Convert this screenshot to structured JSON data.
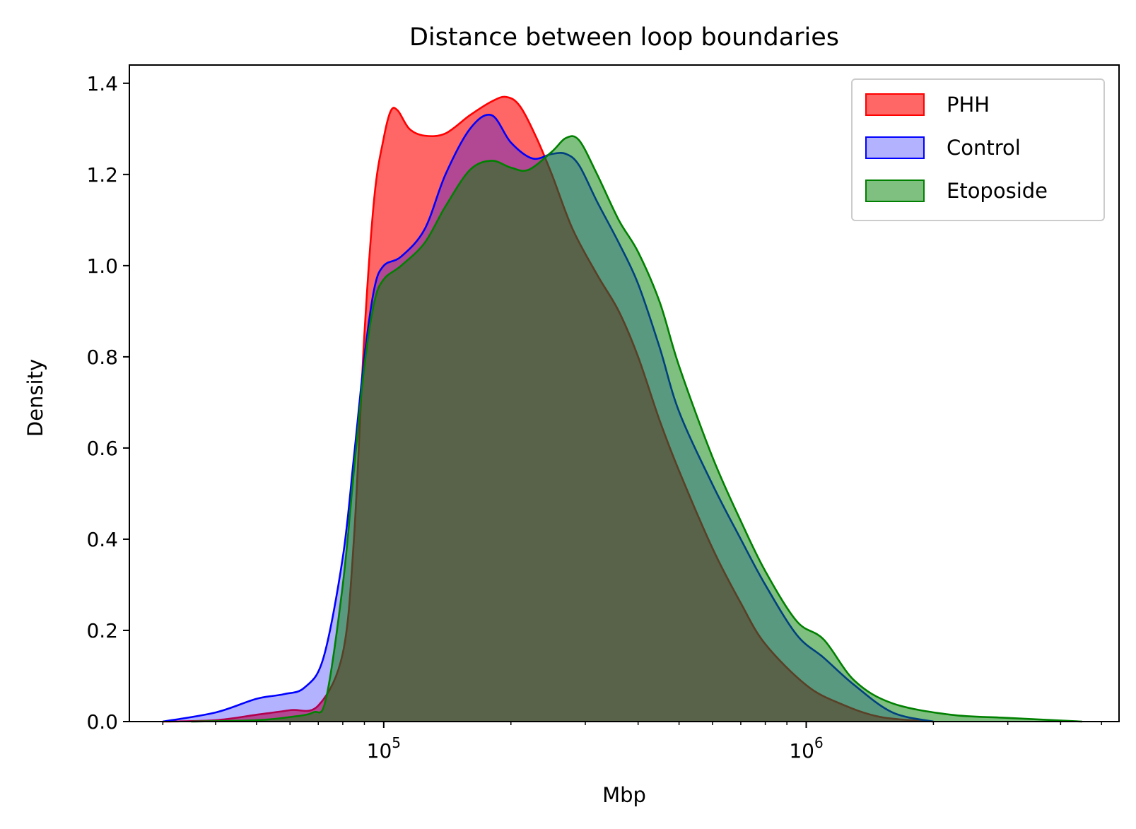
{
  "chart_data": {
    "type": "area",
    "title": "Distance between loop boundaries",
    "xlabel": "Mbp",
    "ylabel": "Density",
    "x_scale": "log10",
    "xlim": [
      25000,
      5500000
    ],
    "ylim": [
      0,
      1.44
    ],
    "xticks": [
      {
        "value": 100000,
        "base": "10",
        "exp": "5"
      },
      {
        "value": 1000000,
        "base": "10",
        "exp": "6"
      }
    ],
    "yticks": [
      {
        "value": 0.0,
        "label": "0.0"
      },
      {
        "value": 0.2,
        "label": "0.2"
      },
      {
        "value": 0.4,
        "label": "0.4"
      },
      {
        "value": 0.6,
        "label": "0.6"
      },
      {
        "value": 0.8,
        "label": "0.8"
      },
      {
        "value": 1.0,
        "label": "1.0"
      },
      {
        "value": 1.2,
        "label": "1.2"
      },
      {
        "value": 1.4,
        "label": "1.4"
      }
    ],
    "grid": false,
    "legend_position": "top-right",
    "series": [
      {
        "name": "PHH",
        "fill": "#ff0000",
        "fill_opacity": 0.6,
        "stroke": "#ff0000",
        "x": [
          30000,
          40000,
          50000,
          60000,
          70000,
          80000,
          85000,
          90000,
          95000,
          100000,
          104000,
          108000,
          115000,
          125000,
          140000,
          160000,
          180000,
          195000,
          210000,
          230000,
          250000,
          280000,
          320000,
          360000,
          400000,
          450000,
          500000,
          600000,
          700000,
          800000,
          1000000,
          1200000,
          1500000,
          2000000
        ],
        "y": [
          0.0,
          0.003,
          0.015,
          0.025,
          0.035,
          0.15,
          0.4,
          0.85,
          1.15,
          1.28,
          1.34,
          1.34,
          1.3,
          1.285,
          1.29,
          1.33,
          1.36,
          1.37,
          1.35,
          1.28,
          1.2,
          1.08,
          0.98,
          0.9,
          0.8,
          0.66,
          0.55,
          0.38,
          0.26,
          0.17,
          0.08,
          0.04,
          0.01,
          0.0
        ]
      },
      {
        "name": "Control",
        "fill": "#0000ff",
        "fill_opacity": 0.3,
        "stroke": "#0000ff",
        "x": [
          30000,
          40000,
          50000,
          58000,
          65000,
          72000,
          80000,
          85000,
          90000,
          95000,
          100000,
          110000,
          125000,
          140000,
          160000,
          180000,
          200000,
          225000,
          250000,
          270000,
          290000,
          320000,
          360000,
          400000,
          450000,
          500000,
          600000,
          700000,
          800000,
          950000,
          1100000,
          1300000,
          1600000,
          2000000
        ],
        "y": [
          0.0,
          0.02,
          0.05,
          0.06,
          0.075,
          0.14,
          0.36,
          0.58,
          0.8,
          0.95,
          1.0,
          1.02,
          1.08,
          1.2,
          1.3,
          1.33,
          1.27,
          1.235,
          1.245,
          1.245,
          1.22,
          1.14,
          1.05,
          0.96,
          0.82,
          0.68,
          0.52,
          0.4,
          0.3,
          0.19,
          0.14,
          0.08,
          0.02,
          0.0
        ]
      },
      {
        "name": "Etoposide",
        "fill": "#008000",
        "fill_opacity": 0.5,
        "stroke": "#008000",
        "x": [
          35000,
          50000,
          60000,
          68000,
          73000,
          80000,
          85000,
          90000,
          95000,
          100000,
          110000,
          125000,
          140000,
          160000,
          180000,
          200000,
          220000,
          250000,
          270000,
          290000,
          320000,
          360000,
          400000,
          450000,
          500000,
          600000,
          700000,
          800000,
          950000,
          1100000,
          1300000,
          1600000,
          2200000,
          3000000,
          4500000
        ],
        "y": [
          0.0,
          0.003,
          0.01,
          0.02,
          0.05,
          0.3,
          0.55,
          0.78,
          0.92,
          0.97,
          1.0,
          1.05,
          1.13,
          1.21,
          1.23,
          1.215,
          1.21,
          1.25,
          1.28,
          1.275,
          1.2,
          1.1,
          1.03,
          0.92,
          0.78,
          0.58,
          0.44,
          0.33,
          0.22,
          0.18,
          0.09,
          0.04,
          0.015,
          0.008,
          0.0
        ]
      }
    ]
  }
}
